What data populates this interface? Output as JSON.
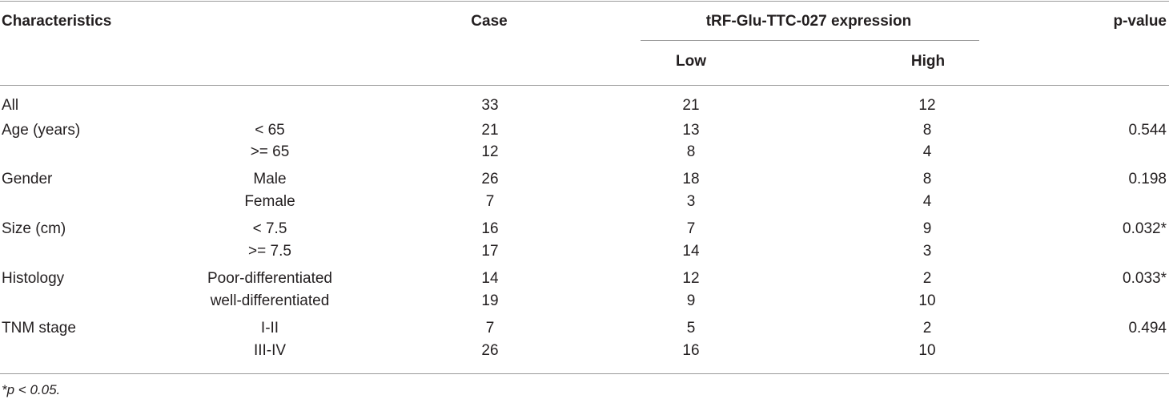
{
  "table": {
    "headers": {
      "characteristics": "Characteristics",
      "case": "Case",
      "expression_group": "tRF-Glu-TTC-027 expression",
      "low": "Low",
      "high": "High",
      "pvalue": "p-value"
    },
    "rows": [
      {
        "label": "All",
        "sub": "",
        "case": "33",
        "low": "21",
        "high": "12",
        "p": ""
      },
      {
        "label": "Age (years)",
        "sub": "< 65",
        "case": "21",
        "low": "13",
        "high": "8",
        "p": "0.544"
      },
      {
        "label": "",
        "sub": ">= 65",
        "case": "12",
        "low": "8",
        "high": "4",
        "p": ""
      },
      {
        "label": "Gender",
        "sub": "Male",
        "case": "26",
        "low": "18",
        "high": "8",
        "p": "0.198"
      },
      {
        "label": "",
        "sub": "Female",
        "case": "7",
        "low": "3",
        "high": "4",
        "p": ""
      },
      {
        "label": "Size (cm)",
        "sub": "< 7.5",
        "case": "16",
        "low": "7",
        "high": "9",
        "p": "0.032*"
      },
      {
        "label": "",
        "sub": ">= 7.5",
        "case": "17",
        "low": "14",
        "high": "3",
        "p": ""
      },
      {
        "label": "Histology",
        "sub": "Poor-differentiated",
        "case": "14",
        "low": "12",
        "high": "2",
        "p": "0.033*"
      },
      {
        "label": "",
        "sub": "well-differentiated",
        "case": "19",
        "low": "9",
        "high": "10",
        "p": ""
      },
      {
        "label": "TNM stage",
        "sub": "I-II",
        "case": "7",
        "low": "5",
        "high": "2",
        "p": "0.494"
      },
      {
        "label": "",
        "sub": "III-IV",
        "case": "26",
        "low": "16",
        "high": "10",
        "p": ""
      }
    ],
    "footnote": "*p < 0.05."
  }
}
